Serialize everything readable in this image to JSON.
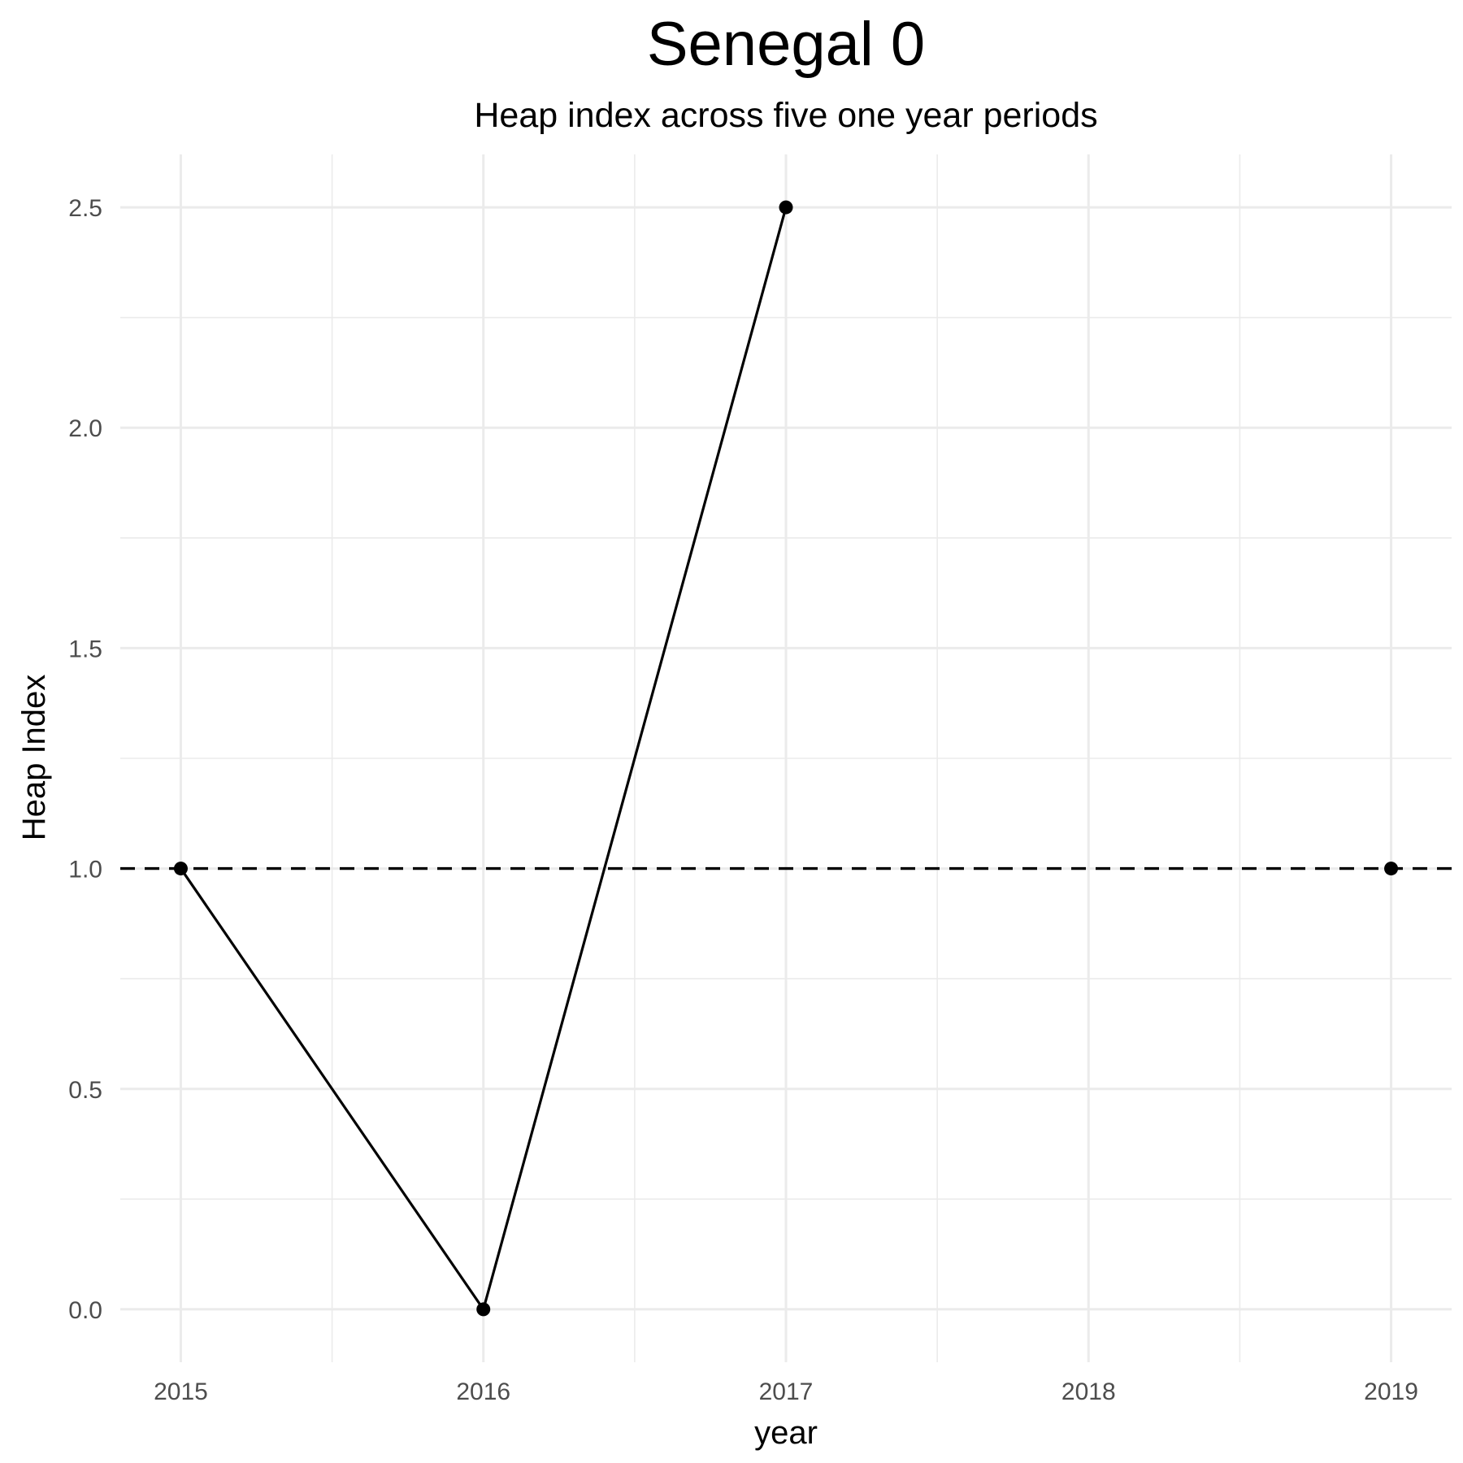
{
  "chart_data": {
    "type": "line",
    "title": "Senegal 0",
    "subtitle": "Heap index across five one year periods",
    "xlabel": "year",
    "ylabel": "Heap Index",
    "x_ticks": [
      "2015",
      "2016",
      "2017",
      "2018",
      "2019"
    ],
    "y_ticks": [
      "0.0",
      "0.5",
      "1.0",
      "1.5",
      "2.0",
      "2.5"
    ],
    "xlim": [
      2014.8,
      2019.2
    ],
    "ylim": [
      -0.12,
      2.62
    ],
    "grid": true,
    "reference_line": {
      "y": 1.0,
      "style": "dashed",
      "color": "#000000"
    },
    "series": [
      {
        "color": "#000000",
        "points": [
          {
            "x": 2015,
            "y": 1.0
          },
          {
            "x": 2016,
            "y": 0.0
          },
          {
            "x": 2017,
            "y": 2.5
          },
          {
            "x": 2018,
            "y": null
          },
          {
            "x": 2019,
            "y": 1.0
          }
        ]
      }
    ]
  }
}
